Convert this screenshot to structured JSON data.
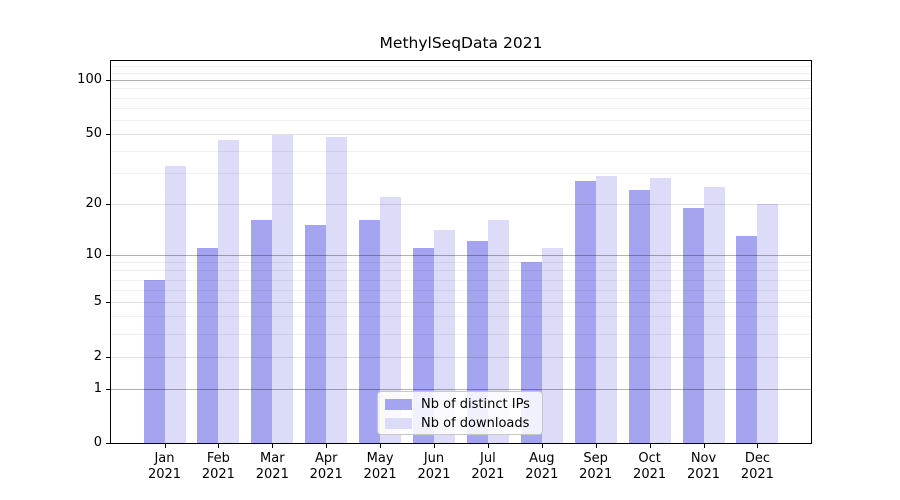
{
  "title": "MethylSeqData 2021",
  "legend": {
    "items": [
      {
        "label": "Nb of distinct IPs",
        "color": "#a4a4f0"
      },
      {
        "label": "Nb of downloads",
        "color": "#dcdcf8"
      }
    ]
  },
  "y_axis": {
    "tick_labels": [
      "100",
      "50",
      "20",
      "10",
      "5",
      "2",
      "1",
      "0"
    ]
  },
  "x_axis": {
    "months": [
      "Jan",
      "Feb",
      "Mar",
      "Apr",
      "May",
      "Jun",
      "Jul",
      "Aug",
      "Sep",
      "Oct",
      "Nov",
      "Dec"
    ],
    "year": "2021"
  },
  "chart_data": {
    "type": "bar",
    "title": "MethylSeqData 2021",
    "categories": [
      "Jan 2021",
      "Feb 2021",
      "Mar 2021",
      "Apr 2021",
      "May 2021",
      "Jun 2021",
      "Jul 2021",
      "Aug 2021",
      "Sep 2021",
      "Oct 2021",
      "Nov 2021",
      "Dec 2021"
    ],
    "series": [
      {
        "name": "Nb of distinct IPs",
        "color": "#a4a4f0",
        "values": [
          7,
          11,
          16,
          15,
          16,
          11,
          12,
          9,
          27,
          24,
          19,
          13
        ]
      },
      {
        "name": "Nb of downloads",
        "color": "#dcdcf8",
        "values": [
          33,
          46,
          49,
          48,
          22,
          14,
          16,
          11,
          29,
          28,
          25,
          20
        ]
      }
    ],
    "xlabel": "",
    "ylabel": "",
    "yscale": "log1p",
    "ylim": [
      0,
      128
    ],
    "y_major_ticks": [
      0,
      1,
      2,
      5,
      10,
      20,
      50,
      100
    ],
    "y_decade_ticks": [
      1,
      10,
      100
    ],
    "y_minor_gridlines": [
      3,
      4,
      6,
      7,
      8,
      9,
      30,
      40,
      60,
      70,
      80,
      90,
      110,
      120
    ],
    "grid": true,
    "grid_above_bars": true,
    "legend_position": "lower center inside"
  }
}
